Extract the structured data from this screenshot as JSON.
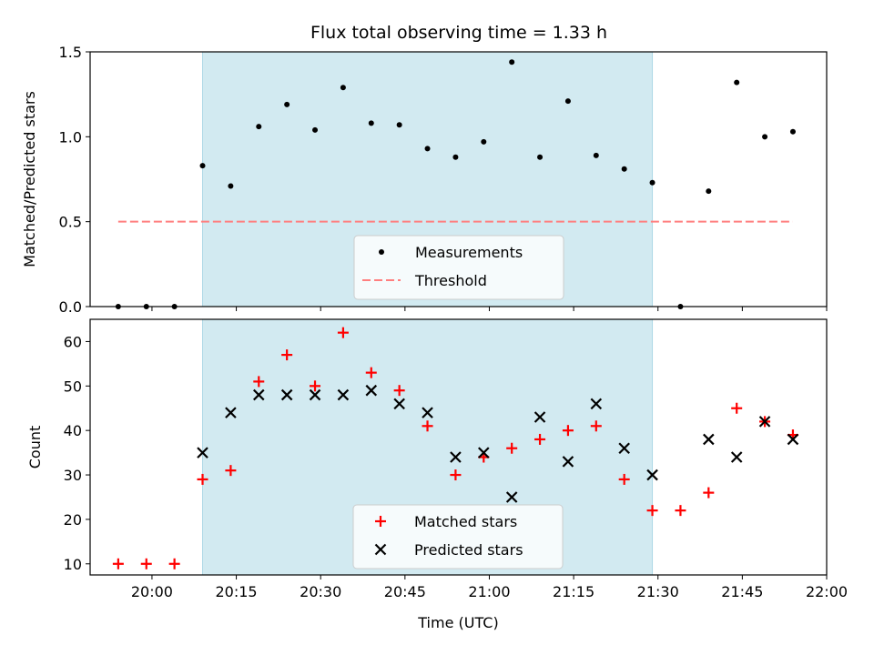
{
  "title": "Flux total observing time = 1.33 h",
  "colors": {
    "shade": "#add8e6",
    "measurement": "#000000",
    "threshold": "#ff7f7f",
    "matched": "#ff0000",
    "predicted": "#000000"
  },
  "chart_data": [
    {
      "type": "scatter",
      "ylabel": "Matched/Predicted stars",
      "xlim": [
        "19:49",
        "22:00"
      ],
      "ylim": [
        0,
        1.5
      ],
      "yticks": [
        0.0,
        0.5,
        1.0,
        1.5
      ],
      "ytick_labels": [
        "0.0",
        "0.5",
        "1.0",
        "1.5"
      ],
      "shaded_span": [
        "20:09",
        "21:29"
      ],
      "legend": {
        "position": "lower center",
        "entries": [
          "Measurements",
          "Threshold"
        ]
      },
      "series": [
        {
          "name": "Measurements",
          "marker": "dot",
          "x": [
            "19:54",
            "19:59",
            "20:04",
            "20:09",
            "20:14",
            "20:19",
            "20:24",
            "20:29",
            "20:34",
            "20:39",
            "20:44",
            "20:49",
            "20:54",
            "20:59",
            "21:04",
            "21:09",
            "21:14",
            "21:19",
            "21:24",
            "21:29",
            "21:34",
            "21:39",
            "21:44",
            "21:49",
            "21:54"
          ],
          "y": [
            0,
            0,
            0,
            0.83,
            0.71,
            1.06,
            1.19,
            1.04,
            1.29,
            1.08,
            1.07,
            0.93,
            0.88,
            0.97,
            1.44,
            0.88,
            1.21,
            0.89,
            0.81,
            0.73,
            0,
            0.68,
            1.32,
            1.0,
            1.03
          ]
        },
        {
          "name": "Threshold",
          "style": "dashed-line",
          "x": [
            "19:54",
            "21:54"
          ],
          "y": [
            0.5,
            0.5
          ]
        }
      ]
    },
    {
      "type": "scatter",
      "xlabel": "Time (UTC)",
      "ylabel": "Count",
      "xlim": [
        "19:49",
        "22:00"
      ],
      "ylim": [
        7.5,
        65
      ],
      "yticks": [
        10,
        20,
        30,
        40,
        50,
        60
      ],
      "xticks": [
        "20:00",
        "20:15",
        "20:30",
        "20:45",
        "21:00",
        "21:15",
        "21:30",
        "21:45",
        "22:00"
      ],
      "shaded_span": [
        "20:09",
        "21:29"
      ],
      "legend": {
        "position": "lower center",
        "entries": [
          "Matched stars",
          "Predicted stars"
        ]
      },
      "series": [
        {
          "name": "Matched stars",
          "marker": "plus",
          "x": [
            "19:54",
            "19:59",
            "20:04",
            "20:09",
            "20:14",
            "20:19",
            "20:24",
            "20:29",
            "20:34",
            "20:39",
            "20:44",
            "20:49",
            "20:54",
            "20:59",
            "21:04",
            "21:09",
            "21:14",
            "21:19",
            "21:24",
            "21:29",
            "21:34",
            "21:39",
            "21:44",
            "21:49",
            "21:54"
          ],
          "y": [
            10,
            10,
            10,
            29,
            31,
            51,
            57,
            50,
            62,
            53,
            49,
            41,
            30,
            34,
            36,
            38,
            40,
            41,
            29,
            22,
            22,
            26,
            45,
            42,
            39
          ]
        },
        {
          "name": "Predicted stars",
          "marker": "x",
          "x": [
            "20:09",
            "20:14",
            "20:19",
            "20:24",
            "20:29",
            "20:34",
            "20:39",
            "20:44",
            "20:49",
            "20:54",
            "20:59",
            "21:04",
            "21:09",
            "21:14",
            "21:19",
            "21:24",
            "21:29",
            "21:39",
            "21:44",
            "21:49",
            "21:54"
          ],
          "y": [
            35,
            44,
            48,
            48,
            48,
            48,
            49,
            46,
            44,
            34,
            35,
            25,
            43,
            33,
            46,
            36,
            30,
            38,
            34,
            42,
            38
          ]
        }
      ]
    }
  ]
}
